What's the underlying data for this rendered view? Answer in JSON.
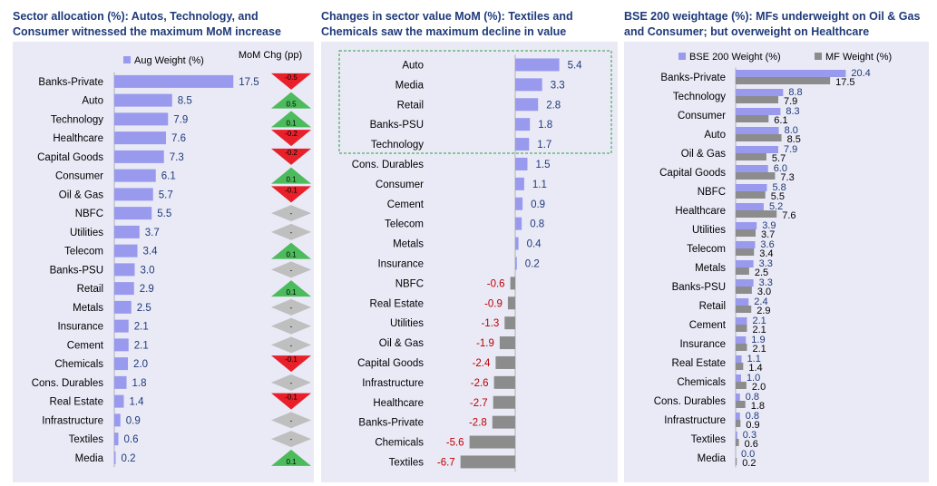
{
  "colors": {
    "title": "#1f3a7a",
    "panel_bg": "#e9eaf6",
    "bar_blue": "#9999ee",
    "bar_grey": "#8c8c8c",
    "neg_text": "#c00000",
    "up": "#4cbb5c",
    "down": "#e8202a",
    "flat": "#bfbfbf"
  },
  "chart_data": [
    {
      "type": "bar",
      "title": "Sector allocation (%): Autos, Technology, and Consumer witnessed the maximum MoM increase",
      "legend": "Aug Weight (%)",
      "change_header": "MoM Chg (pp)",
      "categories": [
        "Banks-Private",
        "Auto",
        "Technology",
        "Healthcare",
        "Capital Goods",
        "Consumer",
        "Oil & Gas",
        "NBFC",
        "Utilities",
        "Telecom",
        "Banks-PSU",
        "Retail",
        "Metals",
        "Insurance",
        "Cement",
        "Chemicals",
        "Cons. Durables",
        "Real Estate",
        "Infrastructure",
        "Textiles",
        "Media"
      ],
      "values": [
        17.5,
        8.5,
        7.9,
        7.6,
        7.3,
        6.1,
        5.7,
        5.5,
        3.7,
        3.4,
        3.0,
        2.9,
        2.5,
        2.1,
        2.1,
        2.0,
        1.8,
        1.4,
        0.9,
        0.6,
        0.2
      ],
      "value_labels": [
        "17.5",
        "8.5",
        "7.9",
        "7.6",
        "7.3",
        "6.1",
        "5.7",
        "5.5",
        "3.7",
        "3.4",
        "3.0",
        "2.9",
        "2.5",
        "2.1",
        "2.1",
        "2.0",
        "1.8",
        "1.4",
        "0.9",
        "0.6",
        "0.2"
      ],
      "mom_change": [
        "-0.5",
        "0.5",
        "0.1",
        "-0.2",
        "-0.2",
        "0.1",
        "-0.1",
        "-",
        "-",
        "0.1",
        "-",
        "0.1",
        "-",
        "-",
        "-",
        "-0.1",
        "-",
        "-0.1",
        "-",
        "-",
        "0.1"
      ],
      "mom_direction": [
        "down",
        "up",
        "up",
        "down",
        "down",
        "up",
        "down",
        "flat",
        "flat",
        "up",
        "flat",
        "up",
        "flat",
        "flat",
        "flat",
        "down",
        "flat",
        "down",
        "flat",
        "flat",
        "up"
      ]
    },
    {
      "type": "bar",
      "title": "Changes in sector value MoM (%): Textiles and Chemicals saw the maximum decline in value",
      "highlight_box": "top five sectors outlined with green dashed border",
      "categories": [
        "Auto",
        "Media",
        "Retail",
        "Banks-PSU",
        "Technology",
        "Cons. Durables",
        "Consumer",
        "Cement",
        "Telecom",
        "Metals",
        "Insurance",
        "NBFC",
        "Real Estate",
        "Utilities",
        "Oil & Gas",
        "Capital Goods",
        "Infrastructure",
        "Healthcare",
        "Banks-Private",
        "Chemicals",
        "Textiles"
      ],
      "values": [
        5.4,
        3.3,
        2.8,
        1.8,
        1.7,
        1.5,
        1.1,
        0.9,
        0.8,
        0.4,
        0.2,
        -0.6,
        -0.9,
        -1.3,
        -1.9,
        -2.4,
        -2.6,
        -2.7,
        -2.8,
        -5.6,
        -6.7
      ],
      "value_labels": [
        "5.4",
        "3.3",
        "2.8",
        "1.8",
        "1.7",
        "1.5",
        "1.1",
        "0.9",
        "0.8",
        "0.4",
        "0.2",
        "-0.6",
        "-0.9",
        "-1.3",
        "-1.9",
        "-2.4",
        "-2.6",
        "-2.7",
        "-2.8",
        "-5.6",
        "-6.7"
      ]
    },
    {
      "type": "bar",
      "title": "BSE 200 weightage (%): MFs underweight on Oil & Gas and Consumer; but overweight on Healthcare",
      "categories": [
        "Banks-Private",
        "Technology",
        "Consumer",
        "Auto",
        "Oil & Gas",
        "Capital Goods",
        "NBFC",
        "Healthcare",
        "Utilities",
        "Telecom",
        "Metals",
        "Banks-PSU",
        "Retail",
        "Cement",
        "Insurance",
        "Real Estate",
        "Chemicals",
        "Cons. Durables",
        "Infrastructure",
        "Textiles",
        "Media"
      ],
      "series": [
        {
          "name": "BSE 200 Weight (%)",
          "values": [
            20.4,
            8.8,
            8.3,
            8.0,
            7.9,
            6.0,
            5.8,
            5.2,
            3.9,
            3.6,
            3.3,
            3.3,
            2.4,
            2.1,
            1.9,
            1.1,
            1.0,
            0.8,
            0.8,
            0.3,
            0.0
          ],
          "labels": [
            "20.4",
            "8.8",
            "8.3",
            "8.0",
            "7.9",
            "6.0",
            "5.8",
            "5.2",
            "3.9",
            "3.6",
            "3.3",
            "3.3",
            "2.4",
            "2.1",
            "1.9",
            "1.1",
            "1.0",
            "0.8",
            "0.8",
            "0.3",
            "0.0"
          ]
        },
        {
          "name": "MF Weight (%)",
          "values": [
            17.5,
            7.9,
            6.1,
            8.5,
            5.7,
            7.3,
            5.5,
            7.6,
            3.7,
            3.4,
            2.5,
            3.0,
            2.9,
            2.1,
            2.1,
            1.4,
            2.0,
            1.8,
            0.9,
            0.6,
            0.2
          ],
          "labels": [
            "17.5",
            "7.9",
            "6.1",
            "8.5",
            "5.7",
            "7.3",
            "5.5",
            "7.6",
            "3.7",
            "3.4",
            "2.5",
            "3.0",
            "2.9",
            "2.1",
            "2.1",
            "1.4",
            "2.0",
            "1.8",
            "0.9",
            "0.6",
            "0.2"
          ]
        }
      ]
    }
  ]
}
